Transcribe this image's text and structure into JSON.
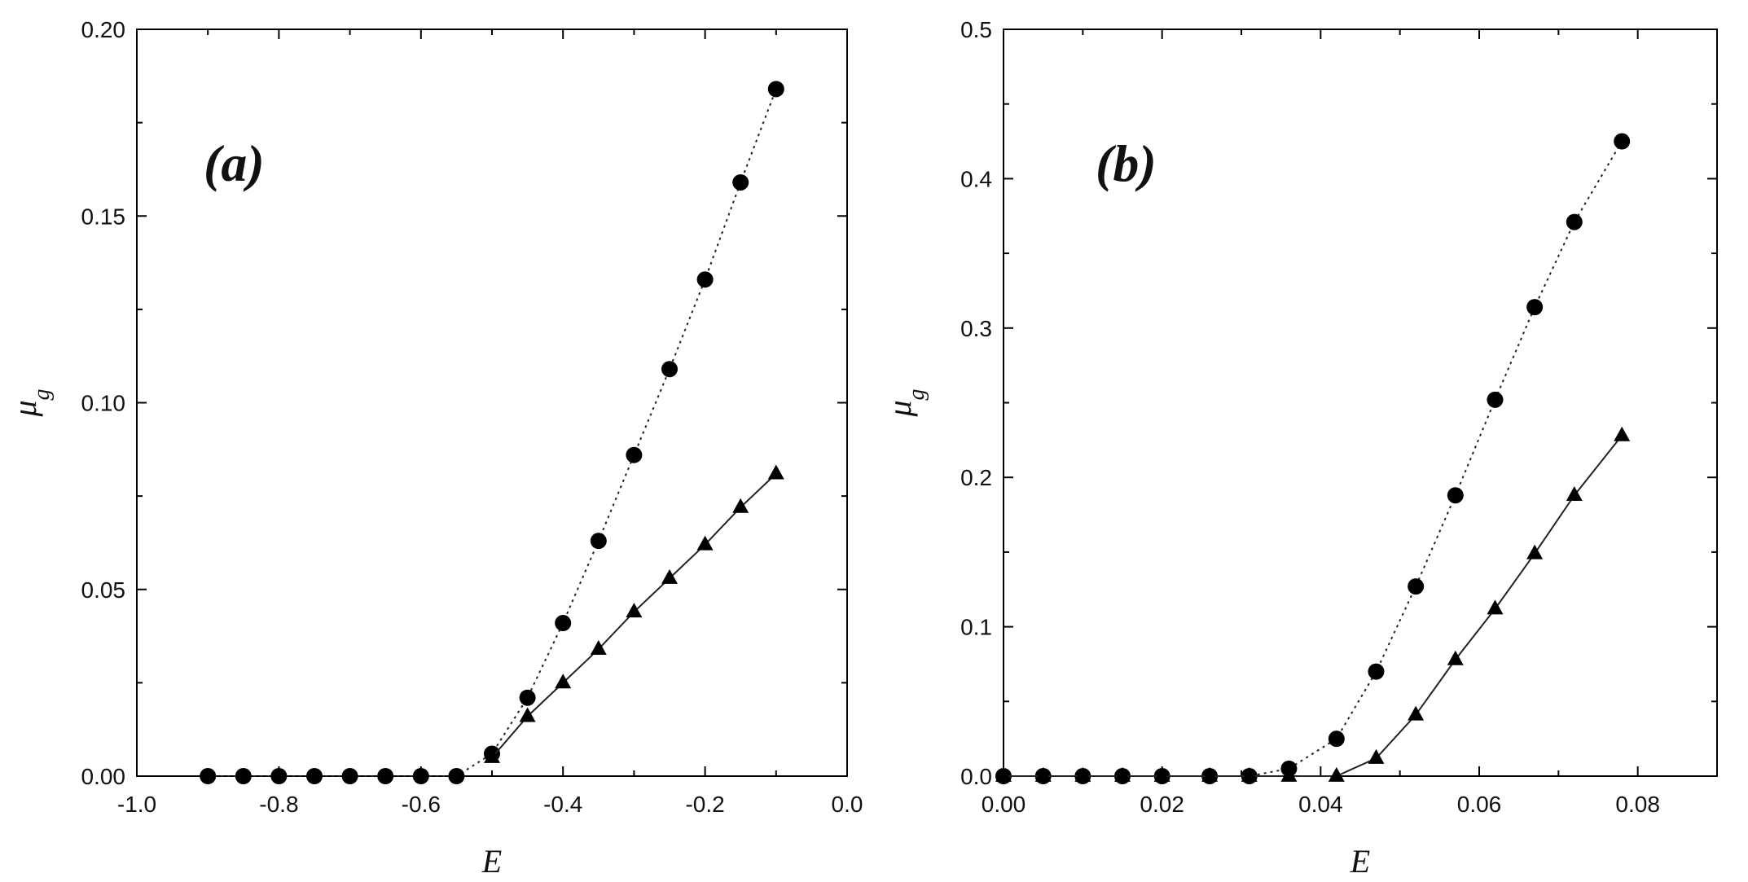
{
  "chart_data": [
    {
      "type": "line",
      "panel_label": "(a)",
      "xlabel": "E",
      "ylabel": "μ_g",
      "xlim": [
        -1.0,
        0.0
      ],
      "ylim": [
        0.0,
        0.2
      ],
      "x_ticks": [
        -1.0,
        -0.8,
        -0.6,
        -0.4,
        -0.2,
        0.0
      ],
      "x_tick_labels": [
        "-1.0",
        "-0.8",
        "-0.6",
        "-0.4",
        "-0.2",
        "0.0"
      ],
      "y_ticks": [
        0.0,
        0.05,
        0.1,
        0.15,
        0.2
      ],
      "y_tick_labels": [
        "0.00",
        "0.05",
        "0.10",
        "0.15",
        "0.20"
      ],
      "grid": false,
      "series": [
        {
          "marker": "circle",
          "line_style": "dotted",
          "x": [
            -0.9,
            -0.85,
            -0.8,
            -0.75,
            -0.7,
            -0.65,
            -0.6,
            -0.55,
            -0.5,
            -0.45,
            -0.4,
            -0.35,
            -0.3,
            -0.25,
            -0.2,
            -0.15,
            -0.1
          ],
          "y": [
            0,
            0,
            0,
            0,
            0,
            0,
            0,
            0,
            0.006,
            0.021,
            0.041,
            0.063,
            0.086,
            0.109,
            0.133,
            0.159,
            0.184
          ]
        },
        {
          "marker": "triangle",
          "line_style": "solid",
          "x": [
            -0.5,
            -0.45,
            -0.4,
            -0.35,
            -0.3,
            -0.25,
            -0.2,
            -0.15,
            -0.1
          ],
          "y": [
            0.005,
            0.016,
            0.025,
            0.034,
            0.044,
            0.053,
            0.062,
            0.072,
            0.081
          ]
        }
      ]
    },
    {
      "type": "line",
      "panel_label": "(b)",
      "xlabel": "E",
      "ylabel": "μ_g",
      "xlim": [
        0.0,
        0.09
      ],
      "ylim": [
        0.0,
        0.5
      ],
      "x_ticks": [
        0.0,
        0.02,
        0.04,
        0.06,
        0.08
      ],
      "x_tick_labels": [
        "0.00",
        "0.02",
        "0.04",
        "0.06",
        "0.08"
      ],
      "y_ticks": [
        0.0,
        0.1,
        0.2,
        0.3,
        0.4,
        0.5
      ],
      "y_tick_labels": [
        "0.0",
        "0.1",
        "0.2",
        "0.3",
        "0.4",
        "0.5"
      ],
      "grid": false,
      "series": [
        {
          "marker": "circle",
          "line_style": "dotted",
          "x": [
            0.0,
            0.005,
            0.01,
            0.015,
            0.02,
            0.026,
            0.031,
            0.036,
            0.042,
            0.047,
            0.052,
            0.057,
            0.062,
            0.067,
            0.072,
            0.078
          ],
          "y": [
            0,
            0,
            0,
            0,
            0,
            0,
            0,
            0.005,
            0.025,
            0.07,
            0.127,
            0.188,
            0.252,
            0.314,
            0.371,
            0.425
          ]
        },
        {
          "marker": "triangle",
          "line_style": "solid",
          "x": [
            0.0,
            0.005,
            0.01,
            0.015,
            0.02,
            0.026,
            0.031,
            0.036,
            0.042,
            0.047,
            0.052,
            0.057,
            0.062,
            0.067,
            0.072,
            0.078
          ],
          "y": [
            0,
            0,
            0,
            0,
            0,
            0,
            0,
            0,
            0,
            0.012,
            0.041,
            0.078,
            0.112,
            0.149,
            0.188,
            0.228
          ]
        }
      ]
    }
  ]
}
